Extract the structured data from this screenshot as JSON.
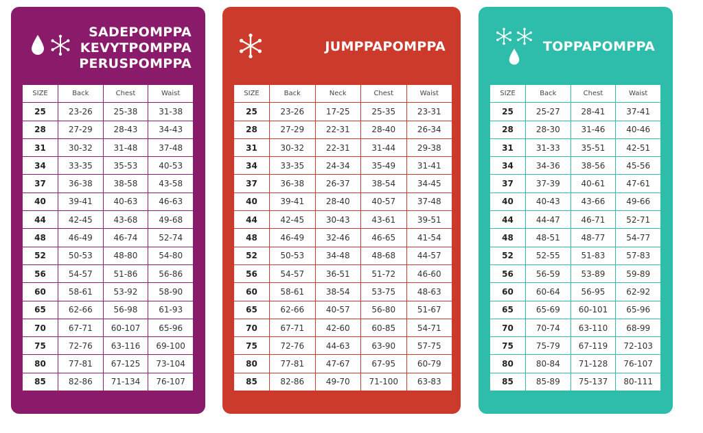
{
  "cards": [
    {
      "id": "sadepomppa",
      "color": "#8a1a6a",
      "title_lines": [
        "SADEPOMPPA",
        "KEVYTPOMPPA",
        "PERUSPOMPPA"
      ],
      "icons": [
        "water-drop-icon",
        "snowflake-icon"
      ],
      "headers": [
        "SIZE",
        "Back",
        "Chest",
        "Waist"
      ],
      "rows": [
        [
          "25",
          "23-26",
          "25-38",
          "31-38"
        ],
        [
          "28",
          "27-29",
          "28-43",
          "34-43"
        ],
        [
          "31",
          "30-32",
          "31-48",
          "37-48"
        ],
        [
          "34",
          "33-35",
          "35-53",
          "40-53"
        ],
        [
          "37",
          "36-38",
          "38-58",
          "43-58"
        ],
        [
          "40",
          "39-41",
          "40-63",
          "46-63"
        ],
        [
          "44",
          "42-45",
          "43-68",
          "49-68"
        ],
        [
          "48",
          "46-49",
          "46-74",
          "52-74"
        ],
        [
          "52",
          "50-53",
          "48-80",
          "54-80"
        ],
        [
          "56",
          "54-57",
          "51-86",
          "56-86"
        ],
        [
          "60",
          "58-61",
          "53-92",
          "58-90"
        ],
        [
          "65",
          "62-66",
          "56-98",
          "61-93"
        ],
        [
          "70",
          "67-71",
          "60-107",
          "65-96"
        ],
        [
          "75",
          "72-76",
          "63-116",
          "69-100"
        ],
        [
          "80",
          "77-81",
          "67-125",
          "73-104"
        ],
        [
          "85",
          "82-86",
          "71-134",
          "76-107"
        ]
      ]
    },
    {
      "id": "jumppapomppa",
      "color": "#cc3a2c",
      "title_lines": [
        "JUMPPAPOMPPA"
      ],
      "icons": [
        "snowflake-icon"
      ],
      "headers": [
        "SIZE",
        "Back",
        "Neck",
        "Chest",
        "Waist"
      ],
      "rows": [
        [
          "25",
          "23-26",
          "17-25",
          "25-35",
          "23-31"
        ],
        [
          "28",
          "27-29",
          "22-31",
          "28-40",
          "26-34"
        ],
        [
          "31",
          "30-32",
          "22-31",
          "31-44",
          "29-38"
        ],
        [
          "34",
          "33-35",
          "24-34",
          "35-49",
          "31-41"
        ],
        [
          "37",
          "36-38",
          "26-37",
          "38-54",
          "34-45"
        ],
        [
          "40",
          "39-41",
          "28-40",
          "40-57",
          "37-48"
        ],
        [
          "44",
          "42-45",
          "30-43",
          "43-61",
          "39-51"
        ],
        [
          "48",
          "46-49",
          "32-46",
          "46-65",
          "41-54"
        ],
        [
          "52",
          "50-53",
          "34-48",
          "48-68",
          "44-57"
        ],
        [
          "56",
          "54-57",
          "36-51",
          "51-72",
          "46-60"
        ],
        [
          "60",
          "58-61",
          "38-54",
          "53-75",
          "48-63"
        ],
        [
          "65",
          "62-66",
          "40-57",
          "56-80",
          "51-67"
        ],
        [
          "70",
          "67-71",
          "42-60",
          "60-85",
          "54-71"
        ],
        [
          "75",
          "72-76",
          "44-63",
          "63-90",
          "57-75"
        ],
        [
          "80",
          "77-81",
          "47-67",
          "67-95",
          "60-79"
        ],
        [
          "85",
          "82-86",
          "49-70",
          "71-100",
          "63-83"
        ]
      ]
    },
    {
      "id": "toppapomppa",
      "color": "#2ebcab",
      "title_lines": [
        "TOPPAPOMPPA"
      ],
      "icons": [
        "snowflake-icon",
        "snowflake-icon",
        "water-drop-icon"
      ],
      "headers": [
        "SIZE",
        "Back",
        "Chest",
        "Waist"
      ],
      "rows": [
        [
          "25",
          "25-27",
          "28-41",
          "37-41"
        ],
        [
          "28",
          "28-30",
          "31-46",
          "40-46"
        ],
        [
          "31",
          "31-33",
          "35-51",
          "42-51"
        ],
        [
          "34",
          "34-36",
          "38-56",
          "45-56"
        ],
        [
          "37",
          "37-39",
          "40-61",
          "47-61"
        ],
        [
          "40",
          "40-43",
          "43-66",
          "49-66"
        ],
        [
          "44",
          "44-47",
          "46-71",
          "52-71"
        ],
        [
          "48",
          "48-51",
          "48-77",
          "54-77"
        ],
        [
          "52",
          "52-55",
          "51-83",
          "57-83"
        ],
        [
          "56",
          "56-59",
          "53-89",
          "59-89"
        ],
        [
          "60",
          "60-64",
          "56-95",
          "62-92"
        ],
        [
          "65",
          "65-69",
          "60-101",
          "65-96"
        ],
        [
          "70",
          "70-74",
          "63-110",
          "68-99"
        ],
        [
          "75",
          "75-79",
          "67-119",
          "72-103"
        ],
        [
          "80",
          "80-84",
          "71-128",
          "76-107"
        ],
        [
          "85",
          "85-89",
          "75-137",
          "80-111"
        ]
      ]
    }
  ]
}
